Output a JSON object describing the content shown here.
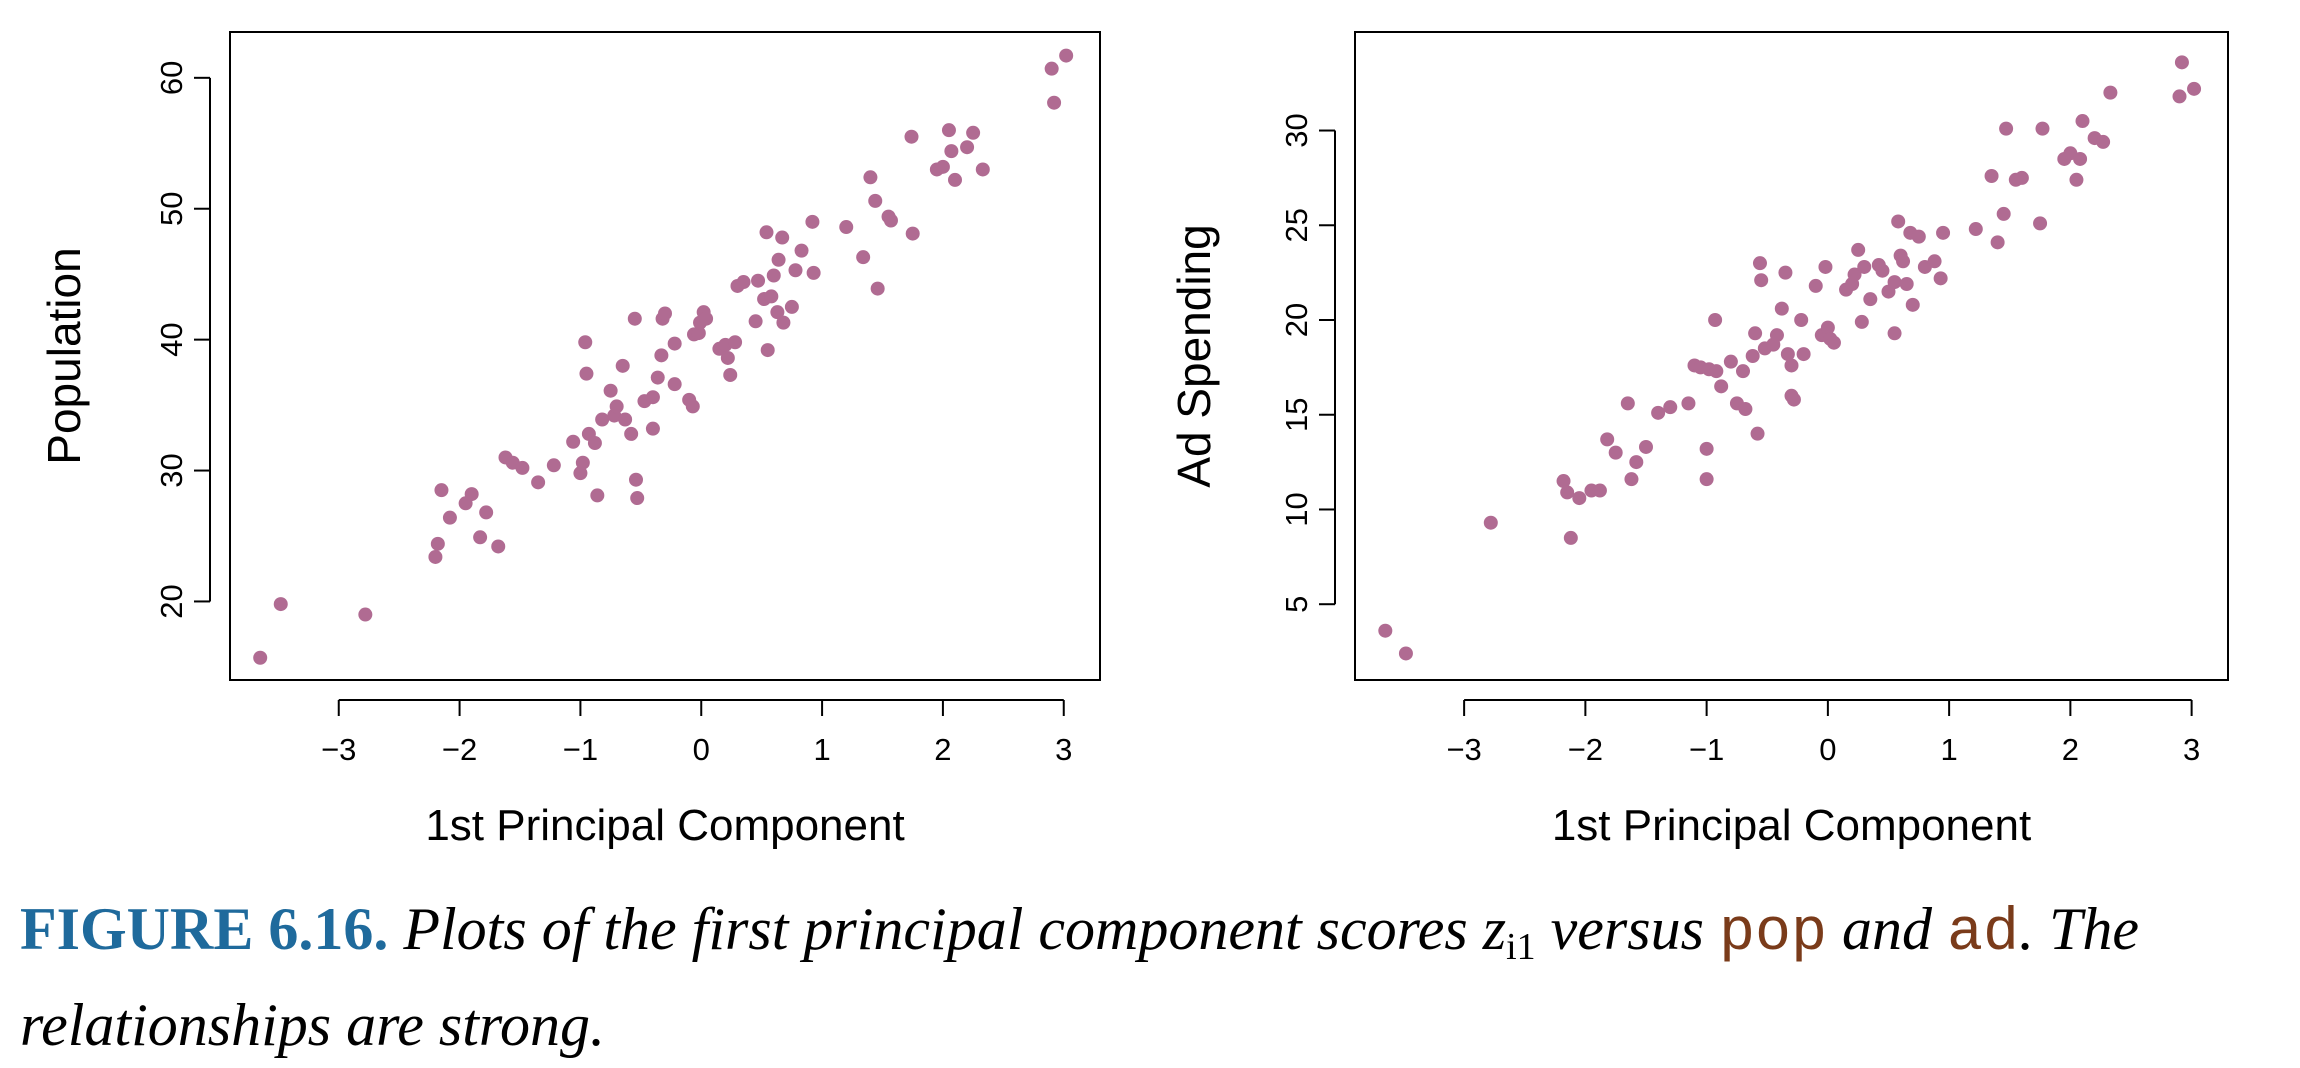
{
  "colors": {
    "point": "#b06b92",
    "axis": "#000000",
    "figure_label": "#1f6a9c",
    "code": "#7a3b1a"
  },
  "chart_data": [
    {
      "type": "scatter",
      "xlabel": "1st Principal Component",
      "ylabel": "Population",
      "xlim": [
        -3.9,
        3.3
      ],
      "ylim": [
        14.0,
        63.5
      ],
      "xticks": [
        "−3",
        "−2",
        "−1",
        "0",
        "1",
        "2",
        "3"
      ],
      "yticks": [
        "20",
        "30",
        "40",
        "50",
        "60"
      ],
      "grid": false,
      "points": [
        [
          -3.65,
          15.7
        ],
        [
          -3.48,
          19.8
        ],
        [
          -2.78,
          19.0
        ],
        [
          -2.2,
          23.4
        ],
        [
          -2.18,
          24.4
        ],
        [
          -2.15,
          28.5
        ],
        [
          -2.08,
          26.4
        ],
        [
          -1.95,
          27.5
        ],
        [
          -1.9,
          28.2
        ],
        [
          -1.83,
          24.9
        ],
        [
          -1.78,
          26.8
        ],
        [
          -1.68,
          24.2
        ],
        [
          -1.62,
          31.0
        ],
        [
          -1.56,
          30.6
        ],
        [
          -1.48,
          30.2
        ],
        [
          -1.35,
          29.1
        ],
        [
          -1.22,
          30.4
        ],
        [
          -1.06,
          32.2
        ],
        [
          -1.0,
          29.8
        ],
        [
          -0.98,
          30.6
        ],
        [
          -0.96,
          39.8
        ],
        [
          -0.95,
          37.4
        ],
        [
          -0.93,
          32.8
        ],
        [
          -0.88,
          32.1
        ],
        [
          -0.86,
          28.1
        ],
        [
          -0.82,
          33.9
        ],
        [
          -0.75,
          36.1
        ],
        [
          -0.72,
          34.2
        ],
        [
          -0.7,
          34.9
        ],
        [
          -0.65,
          38.0
        ],
        [
          -0.63,
          33.9
        ],
        [
          -0.58,
          32.8
        ],
        [
          -0.55,
          41.6
        ],
        [
          -0.54,
          29.3
        ],
        [
          -0.53,
          27.9
        ],
        [
          -0.47,
          35.3
        ],
        [
          -0.4,
          35.6
        ],
        [
          -0.4,
          33.2
        ],
        [
          -0.36,
          37.1
        ],
        [
          -0.33,
          38.8
        ],
        [
          -0.32,
          41.6
        ],
        [
          -0.3,
          42.0
        ],
        [
          -0.22,
          39.7
        ],
        [
          -0.22,
          36.6
        ],
        [
          -0.1,
          35.4
        ],
        [
          -0.07,
          34.9
        ],
        [
          -0.06,
          40.4
        ],
        [
          -0.02,
          40.5
        ],
        [
          -0.01,
          41.3
        ],
        [
          0.02,
          42.1
        ],
        [
          0.04,
          41.6
        ],
        [
          0.15,
          39.3
        ],
        [
          0.2,
          39.6
        ],
        [
          0.22,
          38.6
        ],
        [
          0.24,
          37.3
        ],
        [
          0.28,
          39.8
        ],
        [
          0.3,
          44.1
        ],
        [
          0.35,
          44.4
        ],
        [
          0.45,
          41.4
        ],
        [
          0.47,
          44.5
        ],
        [
          0.52,
          43.1
        ],
        [
          0.54,
          48.2
        ],
        [
          0.55,
          39.2
        ],
        [
          0.58,
          43.3
        ],
        [
          0.6,
          44.9
        ],
        [
          0.63,
          42.1
        ],
        [
          0.64,
          46.1
        ],
        [
          0.67,
          47.8
        ],
        [
          0.68,
          41.3
        ],
        [
          0.75,
          42.5
        ],
        [
          0.78,
          45.3
        ],
        [
          0.83,
          46.8
        ],
        [
          0.92,
          49.0
        ],
        [
          0.93,
          45.1
        ],
        [
          1.2,
          48.6
        ],
        [
          1.34,
          46.3
        ],
        [
          1.4,
          52.4
        ],
        [
          1.44,
          50.6
        ],
        [
          1.46,
          43.9
        ],
        [
          1.55,
          49.4
        ],
        [
          1.57,
          49.1
        ],
        [
          1.74,
          55.5
        ],
        [
          1.75,
          48.1
        ],
        [
          1.95,
          53.0
        ],
        [
          2.0,
          53.2
        ],
        [
          2.05,
          56.0
        ],
        [
          2.07,
          54.4
        ],
        [
          2.1,
          52.2
        ],
        [
          2.2,
          54.7
        ],
        [
          2.25,
          55.8
        ],
        [
          2.33,
          53.0
        ],
        [
          2.9,
          60.7
        ],
        [
          2.92,
          58.1
        ],
        [
          3.02,
          61.7
        ]
      ]
    },
    {
      "type": "scatter",
      "xlabel": "1st Principal Component",
      "ylabel": "Ad Spending",
      "xlim": [
        -3.9,
        3.3
      ],
      "ylim": [
        1.0,
        35.2
      ],
      "xticks": [
        "−3",
        "−2",
        "−1",
        "0",
        "1",
        "2",
        "3"
      ],
      "yticks": [
        "5",
        "10",
        "15",
        "20",
        "25",
        "30"
      ],
      "grid": false,
      "points": [
        [
          -3.65,
          3.6
        ],
        [
          -3.48,
          2.4
        ],
        [
          -2.78,
          9.3
        ],
        [
          -2.18,
          11.5
        ],
        [
          -2.15,
          10.9
        ],
        [
          -2.12,
          8.5
        ],
        [
          -2.05,
          10.6
        ],
        [
          -1.95,
          11.0
        ],
        [
          -1.88,
          11.0
        ],
        [
          -1.82,
          13.7
        ],
        [
          -1.75,
          13.0
        ],
        [
          -1.65,
          15.6
        ],
        [
          -1.62,
          11.6
        ],
        [
          -1.58,
          12.5
        ],
        [
          -1.5,
          13.3
        ],
        [
          -1.4,
          15.1
        ],
        [
          -1.3,
          15.4
        ],
        [
          -1.15,
          15.6
        ],
        [
          -1.1,
          17.6
        ],
        [
          -1.05,
          17.5
        ],
        [
          -1.0,
          11.6
        ],
        [
          -1.0,
          13.2
        ],
        [
          -0.98,
          17.4
        ],
        [
          -0.93,
          20.0
        ],
        [
          -0.92,
          17.3
        ],
        [
          -0.88,
          16.5
        ],
        [
          -0.8,
          17.8
        ],
        [
          -0.75,
          15.6
        ],
        [
          -0.7,
          17.3
        ],
        [
          -0.68,
          15.3
        ],
        [
          -0.62,
          18.1
        ],
        [
          -0.6,
          19.3
        ],
        [
          -0.58,
          14.0
        ],
        [
          -0.56,
          23.0
        ],
        [
          -0.55,
          22.1
        ],
        [
          -0.52,
          18.5
        ],
        [
          -0.45,
          18.7
        ],
        [
          -0.42,
          19.2
        ],
        [
          -0.38,
          20.6
        ],
        [
          -0.35,
          22.5
        ],
        [
          -0.33,
          18.2
        ],
        [
          -0.3,
          17.6
        ],
        [
          -0.3,
          16.0
        ],
        [
          -0.28,
          15.8
        ],
        [
          -0.22,
          20.0
        ],
        [
          -0.2,
          18.2
        ],
        [
          -0.1,
          21.8
        ],
        [
          -0.05,
          19.2
        ],
        [
          -0.02,
          22.8
        ],
        [
          0.0,
          19.6
        ],
        [
          0.02,
          19.0
        ],
        [
          0.05,
          18.8
        ],
        [
          0.15,
          21.6
        ],
        [
          0.2,
          21.9
        ],
        [
          0.22,
          22.4
        ],
        [
          0.25,
          23.7
        ],
        [
          0.28,
          19.9
        ],
        [
          0.3,
          22.8
        ],
        [
          0.35,
          21.1
        ],
        [
          0.42,
          22.9
        ],
        [
          0.45,
          22.6
        ],
        [
          0.5,
          21.5
        ],
        [
          0.55,
          19.3
        ],
        [
          0.55,
          22.0
        ],
        [
          0.58,
          25.2
        ],
        [
          0.6,
          23.4
        ],
        [
          0.62,
          23.1
        ],
        [
          0.65,
          21.9
        ],
        [
          0.68,
          24.6
        ],
        [
          0.7,
          20.8
        ],
        [
          0.75,
          24.4
        ],
        [
          0.8,
          22.8
        ],
        [
          0.88,
          23.1
        ],
        [
          0.93,
          22.2
        ],
        [
          0.95,
          24.6
        ],
        [
          1.22,
          24.8
        ],
        [
          1.35,
          27.6
        ],
        [
          1.4,
          24.1
        ],
        [
          1.45,
          25.6
        ],
        [
          1.47,
          30.1
        ],
        [
          1.55,
          27.4
        ],
        [
          1.6,
          27.5
        ],
        [
          1.75,
          25.1
        ],
        [
          1.77,
          30.1
        ],
        [
          1.95,
          28.5
        ],
        [
          2.0,
          28.8
        ],
        [
          2.05,
          27.4
        ],
        [
          2.08,
          28.5
        ],
        [
          2.1,
          30.5
        ],
        [
          2.2,
          29.6
        ],
        [
          2.27,
          29.4
        ],
        [
          2.33,
          32.0
        ],
        [
          2.9,
          31.8
        ],
        [
          2.92,
          33.6
        ],
        [
          3.02,
          32.2
        ]
      ]
    }
  ],
  "caption": {
    "label": "FIGURE 6.16.",
    "text_1": " Plots of the first principal component scores ",
    "var_base": "z",
    "var_sub": "i1",
    "text_2": " versus ",
    "code_1": "pop",
    "text_3": " and ",
    "code_2": "ad",
    "text_4": ". The relationships are strong."
  }
}
